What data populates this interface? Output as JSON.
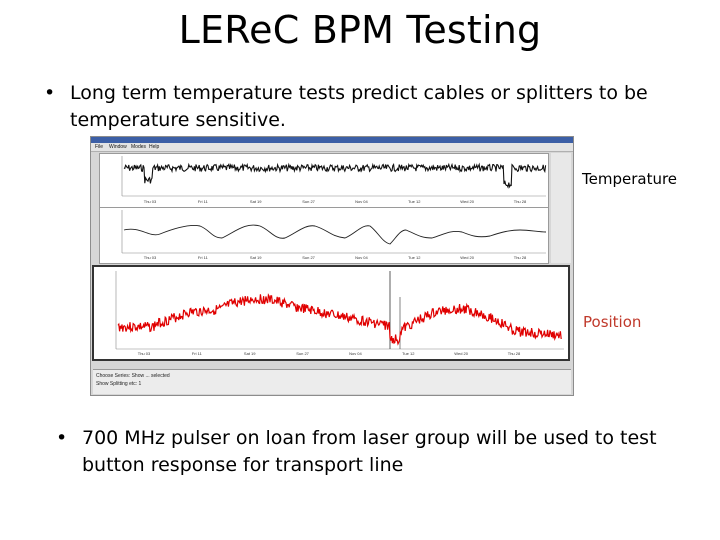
{
  "slide": {
    "title": "LEReC BPM Testing",
    "bullets": [
      "Long term temperature tests predict cables or splitters to be temperature sensitive.",
      "700 MHz pulser on loan from laser group will be used to test button response for transport line"
    ],
    "bullet_glyph": "•"
  },
  "labels": {
    "temperature": "Temperature",
    "position": "Position"
  },
  "app": {
    "menu": [
      "File",
      "Window",
      "Modes",
      "Help"
    ],
    "date_ticks": [
      "Thu 03",
      "Fri 11",
      "Sat 19",
      "Sun 27",
      "Nov 04",
      "Tue 12",
      "Wed 20",
      "Thu 28"
    ],
    "status_lines": [
      "Choose Series: Show ... selected",
      "Show Splitting etc: 1"
    ],
    "colors": {
      "titlebar": "#3c5fa6",
      "trace_black": "#111111",
      "trace_red": "#e00000",
      "window_bg": "#d6d6d6"
    }
  },
  "colors": {
    "position_label": "#c0392b"
  }
}
